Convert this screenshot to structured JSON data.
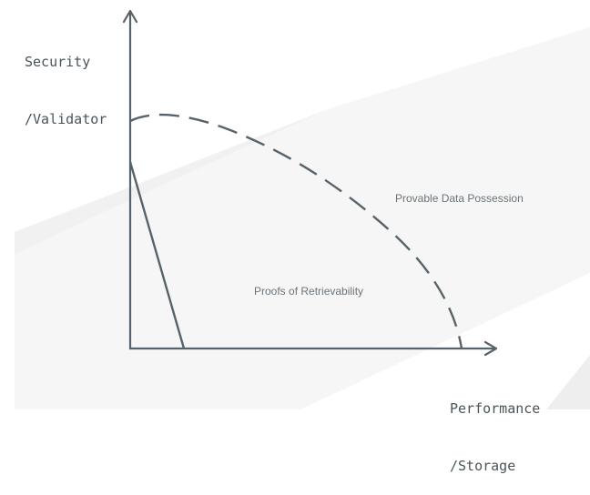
{
  "diagram": {
    "y_axis": {
      "line1": "Security",
      "line2": "/Validator"
    },
    "x_axis": {
      "line1": "Performance",
      "line2": "/Storage"
    },
    "regions": {
      "pdp": "Provable Data Possession",
      "por": "Proofs of Retrievability"
    },
    "colors": {
      "axis": "#56646a",
      "curve": "#56646a",
      "text": "#4a5459",
      "background_shape": "#f5f5f6"
    }
  }
}
